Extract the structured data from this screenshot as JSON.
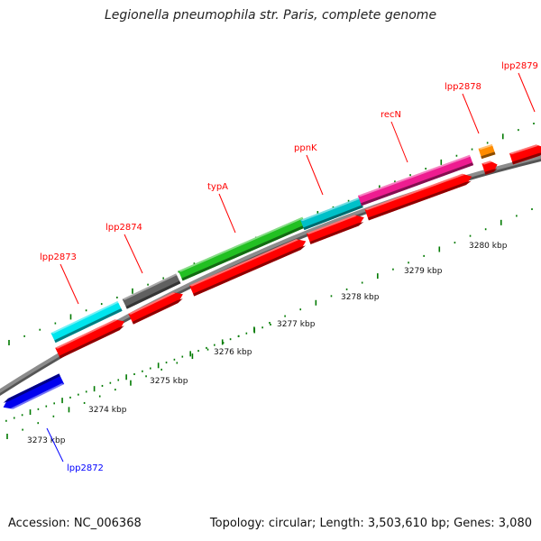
{
  "title": "Legionella pneumophila str. Paris, complete genome",
  "footer": {
    "accession": "Accession: NC_006368",
    "summary": "Topology: circular; Length: 3,503,610 bp; Genes: 3,080"
  },
  "colors": {
    "backbone": "#8c8c8c",
    "cds": "#ff0000",
    "tick": "#007a00",
    "label_red": "#ff0000",
    "label_blue": "#0000ff"
  },
  "scale_labels": [
    "3273 kbp",
    "3274 kbp",
    "3275 kbp",
    "3276 kbp",
    "3277 kbp",
    "3278 kbp",
    "3279 kbp",
    "3280 kbp"
  ],
  "gene_labels": [
    {
      "name": "lpp2872",
      "color": "#0000ff"
    },
    {
      "name": "lpp2873",
      "color": "#ff0000"
    },
    {
      "name": "lpp2874",
      "color": "#ff0000"
    },
    {
      "name": "typA",
      "color": "#ff0000"
    },
    {
      "name": "ppnK",
      "color": "#ff0000"
    },
    {
      "name": "recN",
      "color": "#ff0000"
    },
    {
      "name": "lpp2878",
      "color": "#ff0000"
    },
    {
      "name": "lpp2879",
      "color": "#ff0000"
    }
  ],
  "cog_colors": {
    "lpp2872": "#0000ee",
    "lpp2873": "#00e5ee",
    "lpp2874": "#606060",
    "typA": "#22c022",
    "ppnK": "#00c0c8",
    "recN": "#ee1c90",
    "lpp2878": "#ff8c00"
  }
}
